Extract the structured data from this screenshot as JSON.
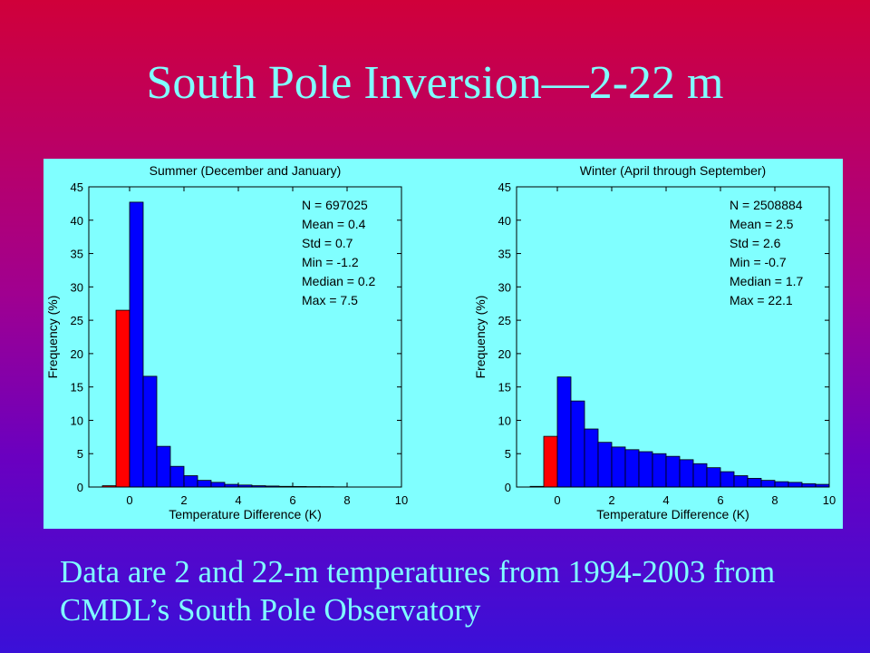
{
  "slide": {
    "title": "South Pole Inversion—2-22 m",
    "caption_line1": "Data are 2 and 22-m temperatures from 1994-2003 from",
    "caption_line2": "CMDL’s South Pole Observatory"
  },
  "colors": {
    "title_text": "#80ffff",
    "panel_bg": "#80ffff",
    "bar_positive": "#0000ff",
    "bar_negative": "#ff0000"
  },
  "chart_data": [
    {
      "type": "bar",
      "title": "Summer (December and January)",
      "xlabel": "Temperature Difference (K)",
      "ylabel": "Frequency (%)",
      "xlim": [
        -1.5,
        10
      ],
      "ylim": [
        0,
        45
      ],
      "xticks": [
        0,
        2,
        4,
        6,
        8,
        10
      ],
      "yticks": [
        0,
        5,
        10,
        15,
        20,
        25,
        30,
        35,
        40,
        45
      ],
      "bin_width": 0.5,
      "bins": [
        {
          "x0": -1.0,
          "value": 0.2,
          "color": "red"
        },
        {
          "x0": -0.5,
          "value": 26.5,
          "color": "red"
        },
        {
          "x0": 0.0,
          "value": 42.7,
          "color": "blue"
        },
        {
          "x0": 0.5,
          "value": 16.6,
          "color": "blue"
        },
        {
          "x0": 1.0,
          "value": 6.1,
          "color": "blue"
        },
        {
          "x0": 1.5,
          "value": 3.1,
          "color": "blue"
        },
        {
          "x0": 2.0,
          "value": 1.7,
          "color": "blue"
        },
        {
          "x0": 2.5,
          "value": 1.0,
          "color": "blue"
        },
        {
          "x0": 3.0,
          "value": 0.7,
          "color": "blue"
        },
        {
          "x0": 3.5,
          "value": 0.4,
          "color": "blue"
        },
        {
          "x0": 4.0,
          "value": 0.3,
          "color": "blue"
        },
        {
          "x0": 4.5,
          "value": 0.2,
          "color": "blue"
        },
        {
          "x0": 5.0,
          "value": 0.15,
          "color": "blue"
        },
        {
          "x0": 5.5,
          "value": 0.1,
          "color": "blue"
        },
        {
          "x0": 6.0,
          "value": 0.08,
          "color": "blue"
        },
        {
          "x0": 6.5,
          "value": 0.06,
          "color": "blue"
        },
        {
          "x0": 7.0,
          "value": 0.05,
          "color": "blue"
        },
        {
          "x0": 7.5,
          "value": 0.03,
          "color": "blue"
        }
      ],
      "stats": [
        "N = 697025",
        "Mean = 0.4",
        "Std = 0.7",
        "Min = -1.2",
        "Median = 0.2",
        "Max = 7.5"
      ],
      "grid": false
    },
    {
      "type": "bar",
      "title": "Winter (April through September)",
      "xlabel": "Temperature Difference (K)",
      "ylabel": "Frequency (%)",
      "xlim": [
        -1.5,
        10
      ],
      "ylim": [
        0,
        45
      ],
      "xticks": [
        0,
        2,
        4,
        6,
        8,
        10
      ],
      "yticks": [
        0,
        5,
        10,
        15,
        20,
        25,
        30,
        35,
        40,
        45
      ],
      "bin_width": 0.5,
      "bins": [
        {
          "x0": -1.0,
          "value": 0.1,
          "color": "red"
        },
        {
          "x0": -0.5,
          "value": 7.6,
          "color": "red"
        },
        {
          "x0": 0.0,
          "value": 16.5,
          "color": "blue"
        },
        {
          "x0": 0.5,
          "value": 12.9,
          "color": "blue"
        },
        {
          "x0": 1.0,
          "value": 8.7,
          "color": "blue"
        },
        {
          "x0": 1.5,
          "value": 6.7,
          "color": "blue"
        },
        {
          "x0": 2.0,
          "value": 6.0,
          "color": "blue"
        },
        {
          "x0": 2.5,
          "value": 5.6,
          "color": "blue"
        },
        {
          "x0": 3.0,
          "value": 5.3,
          "color": "blue"
        },
        {
          "x0": 3.5,
          "value": 5.0,
          "color": "blue"
        },
        {
          "x0": 4.0,
          "value": 4.6,
          "color": "blue"
        },
        {
          "x0": 4.5,
          "value": 4.1,
          "color": "blue"
        },
        {
          "x0": 5.0,
          "value": 3.5,
          "color": "blue"
        },
        {
          "x0": 5.5,
          "value": 2.9,
          "color": "blue"
        },
        {
          "x0": 6.0,
          "value": 2.3,
          "color": "blue"
        },
        {
          "x0": 6.5,
          "value": 1.7,
          "color": "blue"
        },
        {
          "x0": 7.0,
          "value": 1.3,
          "color": "blue"
        },
        {
          "x0": 7.5,
          "value": 1.0,
          "color": "blue"
        },
        {
          "x0": 8.0,
          "value": 0.8,
          "color": "blue"
        },
        {
          "x0": 8.5,
          "value": 0.7,
          "color": "blue"
        },
        {
          "x0": 9.0,
          "value": 0.5,
          "color": "blue"
        },
        {
          "x0": 9.5,
          "value": 0.4,
          "color": "blue"
        }
      ],
      "stats": [
        "N = 2508884",
        "Mean = 2.5",
        "Std = 2.6",
        "Min = -0.7",
        "Median = 1.7",
        "Max = 22.1"
      ],
      "grid": false
    }
  ]
}
